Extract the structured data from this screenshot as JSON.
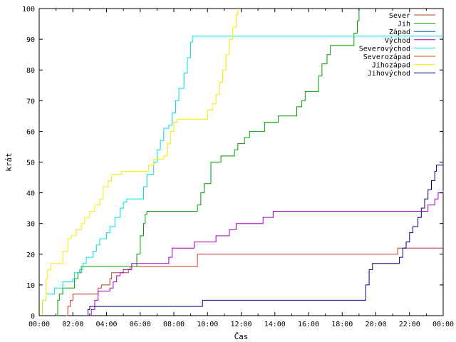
{
  "chart_data": {
    "type": "line",
    "title": "",
    "xlabel": "Čas",
    "ylabel": "krát",
    "xlim": [
      0,
      24
    ],
    "ylim": [
      0,
      100
    ],
    "x_ticks": [
      "00:00",
      "02:00",
      "04:00",
      "06:00",
      "08:00",
      "10:00",
      "12:00",
      "14:00",
      "16:00",
      "18:00",
      "20:00",
      "22:00",
      "00:00"
    ],
    "y_ticks": [
      0,
      10,
      20,
      30,
      40,
      50,
      60,
      70,
      80,
      90,
      100
    ],
    "legend_position": "top-right",
    "series": [
      {
        "name": "Sever",
        "color": "#c0392b",
        "points": [
          [
            1.6,
            0
          ],
          [
            1.7,
            3
          ],
          [
            1.85,
            5
          ],
          [
            2.0,
            7
          ],
          [
            3.4,
            7
          ],
          [
            3.5,
            9
          ],
          [
            3.7,
            10
          ],
          [
            4.2,
            12
          ],
          [
            4.3,
            14
          ],
          [
            5.2,
            14
          ],
          [
            5.3,
            15
          ],
          [
            5.4,
            16
          ],
          [
            9.3,
            16
          ],
          [
            9.4,
            20
          ],
          [
            21.2,
            20
          ],
          [
            21.3,
            22
          ],
          [
            24,
            22
          ]
        ]
      },
      {
        "name": "Jih",
        "color": "#00a000",
        "points": [
          [
            1.0,
            0
          ],
          [
            1.1,
            5
          ],
          [
            1.2,
            7
          ],
          [
            1.4,
            9
          ],
          [
            2.0,
            9
          ],
          [
            2.1,
            12
          ],
          [
            2.3,
            14
          ],
          [
            2.5,
            16
          ],
          [
            5.7,
            16
          ],
          [
            5.8,
            20
          ],
          [
            6.0,
            26
          ],
          [
            6.2,
            30
          ],
          [
            6.3,
            33
          ],
          [
            6.4,
            34
          ],
          [
            9.3,
            34
          ],
          [
            9.4,
            36
          ],
          [
            9.6,
            40
          ],
          [
            9.8,
            43
          ],
          [
            10.2,
            50
          ],
          [
            10.6,
            50
          ],
          [
            10.8,
            52
          ],
          [
            11.5,
            52
          ],
          [
            11.6,
            54
          ],
          [
            11.8,
            56
          ],
          [
            12.2,
            58
          ],
          [
            12.5,
            60
          ],
          [
            13.3,
            60
          ],
          [
            13.4,
            63
          ],
          [
            14.1,
            63
          ],
          [
            14.2,
            65
          ],
          [
            15.2,
            65
          ],
          [
            15.3,
            68
          ],
          [
            15.6,
            70
          ],
          [
            15.8,
            73
          ],
          [
            16.5,
            73
          ],
          [
            16.6,
            78
          ],
          [
            16.8,
            82
          ],
          [
            17.1,
            85
          ],
          [
            17.3,
            88
          ],
          [
            18.6,
            88
          ],
          [
            18.7,
            92
          ],
          [
            18.9,
            96
          ],
          [
            19.0,
            100
          ]
        ]
      },
      {
        "name": "Západ",
        "color": "#0060b0",
        "points": []
      },
      {
        "name": "Východ",
        "color": "#a000c0",
        "points": [
          [
            3.0,
            0
          ],
          [
            3.1,
            2
          ],
          [
            3.3,
            5
          ],
          [
            3.5,
            8
          ],
          [
            4.2,
            9
          ],
          [
            4.4,
            11
          ],
          [
            4.6,
            13
          ],
          [
            4.8,
            14
          ],
          [
            5.0,
            15
          ],
          [
            5.5,
            17
          ],
          [
            7.6,
            17
          ],
          [
            7.7,
            19
          ],
          [
            7.9,
            22
          ],
          [
            9.1,
            22
          ],
          [
            9.2,
            24
          ],
          [
            10.4,
            24
          ],
          [
            10.5,
            26
          ],
          [
            11.2,
            26
          ],
          [
            11.3,
            28
          ],
          [
            11.6,
            28
          ],
          [
            11.7,
            30
          ],
          [
            13.2,
            30
          ],
          [
            13.3,
            32
          ],
          [
            13.8,
            32
          ],
          [
            13.9,
            34
          ],
          [
            22.9,
            34
          ],
          [
            23.1,
            36
          ],
          [
            23.4,
            36
          ],
          [
            23.5,
            38
          ],
          [
            23.7,
            40
          ],
          [
            24,
            41
          ]
        ]
      },
      {
        "name": "Severovýchod",
        "color": "#00dddd",
        "points": [
          [
            0.1,
            0
          ],
          [
            0.2,
            5
          ],
          [
            0.4,
            7
          ],
          [
            0.8,
            7
          ],
          [
            0.9,
            9
          ],
          [
            1.3,
            9
          ],
          [
            1.4,
            11
          ],
          [
            2.0,
            12
          ],
          [
            2.1,
            14
          ],
          [
            2.4,
            15
          ],
          [
            2.6,
            17
          ],
          [
            2.8,
            19
          ],
          [
            3.2,
            21
          ],
          [
            3.4,
            23
          ],
          [
            3.6,
            25
          ],
          [
            4.0,
            27
          ],
          [
            4.2,
            29
          ],
          [
            4.5,
            32
          ],
          [
            4.8,
            35
          ],
          [
            5.0,
            37
          ],
          [
            5.2,
            38
          ],
          [
            6.1,
            38
          ],
          [
            6.2,
            42
          ],
          [
            6.4,
            46
          ],
          [
            6.8,
            50
          ],
          [
            7.0,
            54
          ],
          [
            7.2,
            57
          ],
          [
            7.4,
            61
          ],
          [
            7.7,
            62
          ],
          [
            7.9,
            66
          ],
          [
            8.1,
            70
          ],
          [
            8.3,
            74
          ],
          [
            8.6,
            79
          ],
          [
            8.8,
            84
          ],
          [
            9.0,
            89
          ],
          [
            9.1,
            91
          ],
          [
            24,
            91
          ]
        ]
      },
      {
        "name": "Severozápad",
        "color": "#cc5500",
        "points": []
      },
      {
        "name": "Jihozápad",
        "color": "#eeee00",
        "points": [
          [
            0,
            0
          ],
          [
            0.2,
            5
          ],
          [
            0.4,
            12
          ],
          [
            0.5,
            15
          ],
          [
            0.7,
            17
          ],
          [
            1.2,
            17
          ],
          [
            1.4,
            21
          ],
          [
            1.7,
            25
          ],
          [
            1.9,
            26
          ],
          [
            2.2,
            28
          ],
          [
            2.5,
            30
          ],
          [
            2.7,
            32
          ],
          [
            3.0,
            34
          ],
          [
            3.3,
            36
          ],
          [
            3.6,
            38
          ],
          [
            3.8,
            42
          ],
          [
            4.1,
            44
          ],
          [
            4.3,
            46
          ],
          [
            4.8,
            46
          ],
          [
            4.9,
            47
          ],
          [
            6.2,
            47
          ],
          [
            6.5,
            49
          ],
          [
            6.8,
            51
          ],
          [
            7.1,
            51
          ],
          [
            7.4,
            52
          ],
          [
            7.6,
            56
          ],
          [
            7.8,
            60
          ],
          [
            8.0,
            63
          ],
          [
            8.2,
            64
          ],
          [
            9.8,
            64
          ],
          [
            10.0,
            67
          ],
          [
            10.3,
            69
          ],
          [
            10.5,
            72
          ],
          [
            10.7,
            76
          ],
          [
            10.9,
            80
          ],
          [
            11.1,
            85
          ],
          [
            11.3,
            90
          ],
          [
            11.5,
            94
          ],
          [
            11.7,
            98
          ],
          [
            11.8,
            100
          ]
        ]
      },
      {
        "name": "Jihovýchod",
        "color": "#000080",
        "points": [
          [
            2.8,
            0
          ],
          [
            2.9,
            2
          ],
          [
            3.0,
            3
          ],
          [
            9.6,
            3
          ],
          [
            9.7,
            5
          ],
          [
            19.2,
            5
          ],
          [
            19.4,
            10
          ],
          [
            19.6,
            15
          ],
          [
            19.8,
            17
          ],
          [
            21.3,
            17
          ],
          [
            21.4,
            19
          ],
          [
            21.6,
            22
          ],
          [
            21.8,
            24
          ],
          [
            22.0,
            27
          ],
          [
            22.2,
            29
          ],
          [
            22.5,
            32
          ],
          [
            22.7,
            35
          ],
          [
            22.9,
            38
          ],
          [
            23.1,
            41
          ],
          [
            23.3,
            44
          ],
          [
            23.5,
            47
          ],
          [
            23.6,
            49
          ],
          [
            24,
            49
          ]
        ]
      }
    ]
  }
}
